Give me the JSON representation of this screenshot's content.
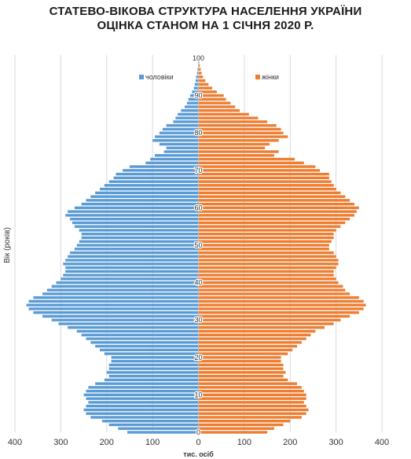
{
  "chart_data": {
    "type": "bar",
    "orientation": "horizontal-pyramid",
    "title_line1": "СТАТЕВО-ВІКОВА СТРУКТУРА НАСЕЛЕННЯ УКРАЇНИ",
    "title_line2": "ОЦІНКА СТАНОМ НА 1 СІЧНЯ 2020 Р.",
    "xlabel": "тис. осіб",
    "ylabel": "Вік (років)",
    "xlim": [
      -400,
      400
    ],
    "ylim": [
      0,
      100
    ],
    "x_ticks": [
      400,
      300,
      200,
      100,
      0,
      100,
      200,
      300,
      400
    ],
    "y_ticks": [
      0,
      10,
      20,
      30,
      40,
      50,
      60,
      70,
      80,
      90,
      100
    ],
    "grid": "vertical",
    "legend_placement": "top",
    "ages": [
      0,
      1,
      2,
      3,
      4,
      5,
      6,
      7,
      8,
      9,
      10,
      11,
      12,
      13,
      14,
      15,
      16,
      17,
      18,
      19,
      20,
      21,
      22,
      23,
      24,
      25,
      26,
      27,
      28,
      29,
      30,
      31,
      32,
      33,
      34,
      35,
      36,
      37,
      38,
      39,
      40,
      41,
      42,
      43,
      44,
      45,
      46,
      47,
      48,
      49,
      50,
      51,
      52,
      53,
      54,
      55,
      56,
      57,
      58,
      59,
      60,
      61,
      62,
      63,
      64,
      65,
      66,
      67,
      68,
      69,
      70,
      71,
      72,
      73,
      74,
      75,
      76,
      77,
      78,
      79,
      80,
      81,
      82,
      83,
      84,
      85,
      86,
      87,
      88,
      89,
      90,
      91,
      92,
      93,
      94,
      95,
      96,
      97,
      98,
      99,
      100
    ],
    "series": [
      {
        "name": "чоловіки",
        "color": "#5b9bd5",
        "values": [
          155,
          175,
          195,
          210,
          235,
          245,
          250,
          245,
          240,
          245,
          250,
          245,
          240,
          225,
          205,
          195,
          200,
          195,
          195,
          190,
          190,
          205,
          215,
          225,
          235,
          245,
          255,
          265,
          285,
          305,
          320,
          340,
          360,
          370,
          375,
          370,
          360,
          340,
          330,
          320,
          310,
          300,
          295,
          290,
          290,
          295,
          290,
          285,
          280,
          270,
          265,
          260,
          255,
          255,
          260,
          270,
          275,
          280,
          290,
          285,
          270,
          255,
          245,
          235,
          225,
          215,
          205,
          195,
          185,
          180,
          165,
          150,
          115,
          105,
          95,
          75,
          70,
          85,
          100,
          95,
          85,
          78,
          70,
          55,
          50,
          45,
          38,
          30,
          25,
          22,
          18,
          14,
          10,
          8,
          6,
          5,
          3,
          2,
          1,
          1,
          1
        ]
      },
      {
        "name": "жінки",
        "color": "#ed7d31",
        "values": [
          150,
          165,
          185,
          200,
          225,
          235,
          240,
          235,
          230,
          235,
          235,
          230,
          225,
          215,
          195,
          185,
          190,
          185,
          185,
          180,
          180,
          195,
          205,
          215,
          225,
          235,
          245,
          255,
          275,
          295,
          310,
          330,
          350,
          360,
          365,
          360,
          350,
          330,
          320,
          315,
          305,
          300,
          295,
          295,
          300,
          305,
          305,
          300,
          295,
          285,
          285,
          290,
          295,
          295,
          300,
          310,
          320,
          330,
          340,
          345,
          350,
          340,
          330,
          320,
          310,
          300,
          295,
          290,
          285,
          285,
          265,
          255,
          230,
          210,
          165,
          175,
          145,
          155,
          175,
          195,
          185,
          180,
          170,
          150,
          130,
          110,
          90,
          80,
          70,
          60,
          55,
          40,
          30,
          22,
          15,
          10,
          7,
          5,
          3,
          2,
          1
        ]
      }
    ]
  }
}
